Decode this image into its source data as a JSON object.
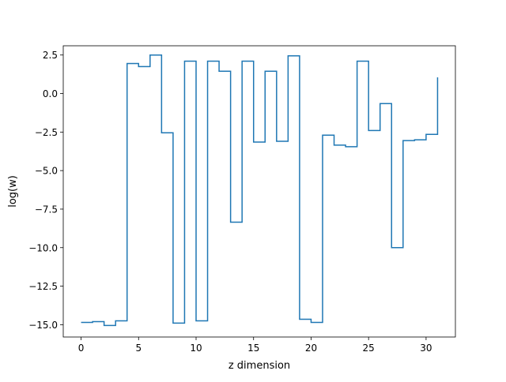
{
  "chart_data": {
    "type": "line",
    "step": "post",
    "title": "",
    "xlabel": "z dimension",
    "ylabel": "log(w)",
    "xlim": [
      -1.55,
      32.55
    ],
    "ylim": [
      -15.8,
      3.1
    ],
    "xticks": [
      0,
      5,
      10,
      15,
      20,
      25,
      30
    ],
    "xtick_labels": [
      "0",
      "5",
      "10",
      "15",
      "20",
      "25",
      "30"
    ],
    "yticks": [
      2.5,
      0.0,
      -2.5,
      -5.0,
      -7.5,
      -10.0,
      -12.5,
      -15.0
    ],
    "ytick_labels": [
      "2.5",
      "0.0",
      "−2.5",
      "−5.0",
      "−7.5",
      "−10.0",
      "−12.5",
      "−15.0"
    ],
    "grid": false,
    "series": [
      {
        "color": "#1f77b4",
        "x": [
          0,
          1,
          2,
          3,
          4,
          5,
          6,
          7,
          8,
          9,
          10,
          11,
          12,
          13,
          14,
          15,
          16,
          17,
          18,
          19,
          20,
          21,
          22,
          23,
          24,
          25,
          26,
          27,
          28,
          29,
          30,
          31
        ],
        "y": [
          -14.85,
          -14.8,
          -15.05,
          -14.75,
          1.95,
          1.75,
          2.5,
          -2.55,
          -14.9,
          2.1,
          -14.75,
          2.1,
          1.45,
          -8.35,
          2.1,
          -3.15,
          1.45,
          -3.1,
          2.45,
          -14.65,
          -14.85,
          -2.7,
          -3.35,
          -3.45,
          2.1,
          -2.4,
          -0.65,
          -10.0,
          -3.05,
          -3.0,
          -2.65,
          1.05
        ]
      }
    ]
  }
}
